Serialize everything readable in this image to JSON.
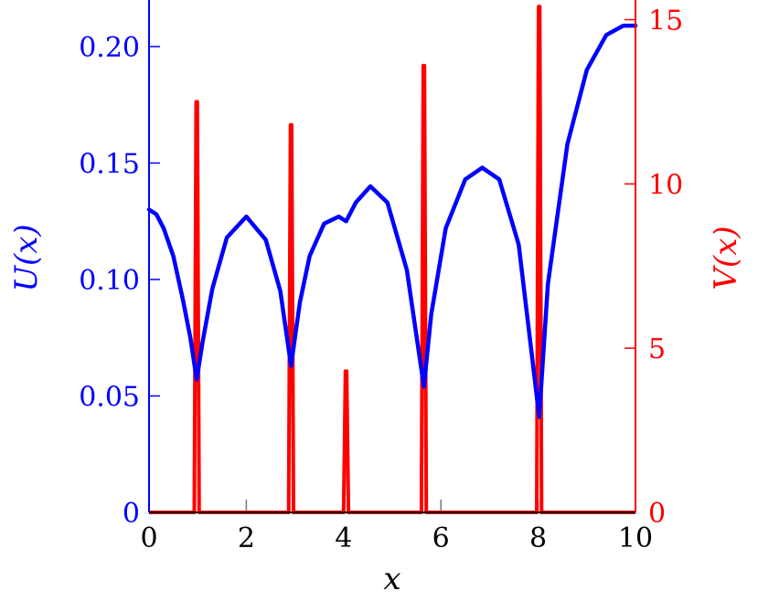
{
  "chart_data": {
    "type": "line",
    "xlabel": "x",
    "x_ticks": [
      0,
      2,
      4,
      6,
      8,
      10
    ],
    "xlim": [
      0,
      10
    ],
    "grid": false,
    "left_axis": {
      "label": "U(x)",
      "color": "#0000ff",
      "ylim": [
        0,
        0.22
      ],
      "ticks": [
        0,
        0.05,
        0.1,
        0.15,
        0.2
      ],
      "tick_labels": [
        "0",
        "0.05",
        "0.10",
        "0.15",
        "0.20"
      ]
    },
    "right_axis": {
      "label": "V(x)",
      "color": "#ff0000",
      "ylim": [
        0,
        15.6
      ],
      "ticks": [
        0,
        5,
        10,
        15
      ],
      "tick_labels": [
        "0",
        "5",
        "10",
        "15"
      ]
    },
    "series": [
      {
        "axis": "left",
        "color": "#0000ff",
        "x": [
          0,
          0.15,
          0.3,
          0.5,
          0.7,
          0.85,
          0.98,
          1.1,
          1.3,
          1.6,
          2.0,
          2.4,
          2.7,
          2.92,
          3.1,
          3.3,
          3.6,
          3.9,
          4.05,
          4.25,
          4.55,
          4.9,
          5.3,
          5.65,
          5.8,
          6.1,
          6.5,
          6.85,
          7.2,
          7.6,
          8.02,
          8.2,
          8.6,
          9.0,
          9.4,
          9.75,
          10.0
        ],
        "values": [
          0.13,
          0.128,
          0.122,
          0.11,
          0.091,
          0.075,
          0.057,
          0.073,
          0.096,
          0.118,
          0.127,
          0.117,
          0.095,
          0.063,
          0.09,
          0.11,
          0.124,
          0.127,
          0.125,
          0.133,
          0.14,
          0.133,
          0.104,
          0.054,
          0.085,
          0.122,
          0.143,
          0.148,
          0.143,
          0.115,
          0.041,
          0.098,
          0.158,
          0.19,
          0.205,
          0.209,
          0.209
        ]
      },
      {
        "axis": "right",
        "color": "#ff0000",
        "spikes": [
          {
            "x": 0.98,
            "peak": 12.5
          },
          {
            "x": 2.92,
            "peak": 11.8
          },
          {
            "x": 4.05,
            "peak": 4.3
          },
          {
            "x": 5.65,
            "peak": 13.6
          },
          {
            "x": 8.02,
            "peak": 15.4
          }
        ]
      }
    ]
  }
}
